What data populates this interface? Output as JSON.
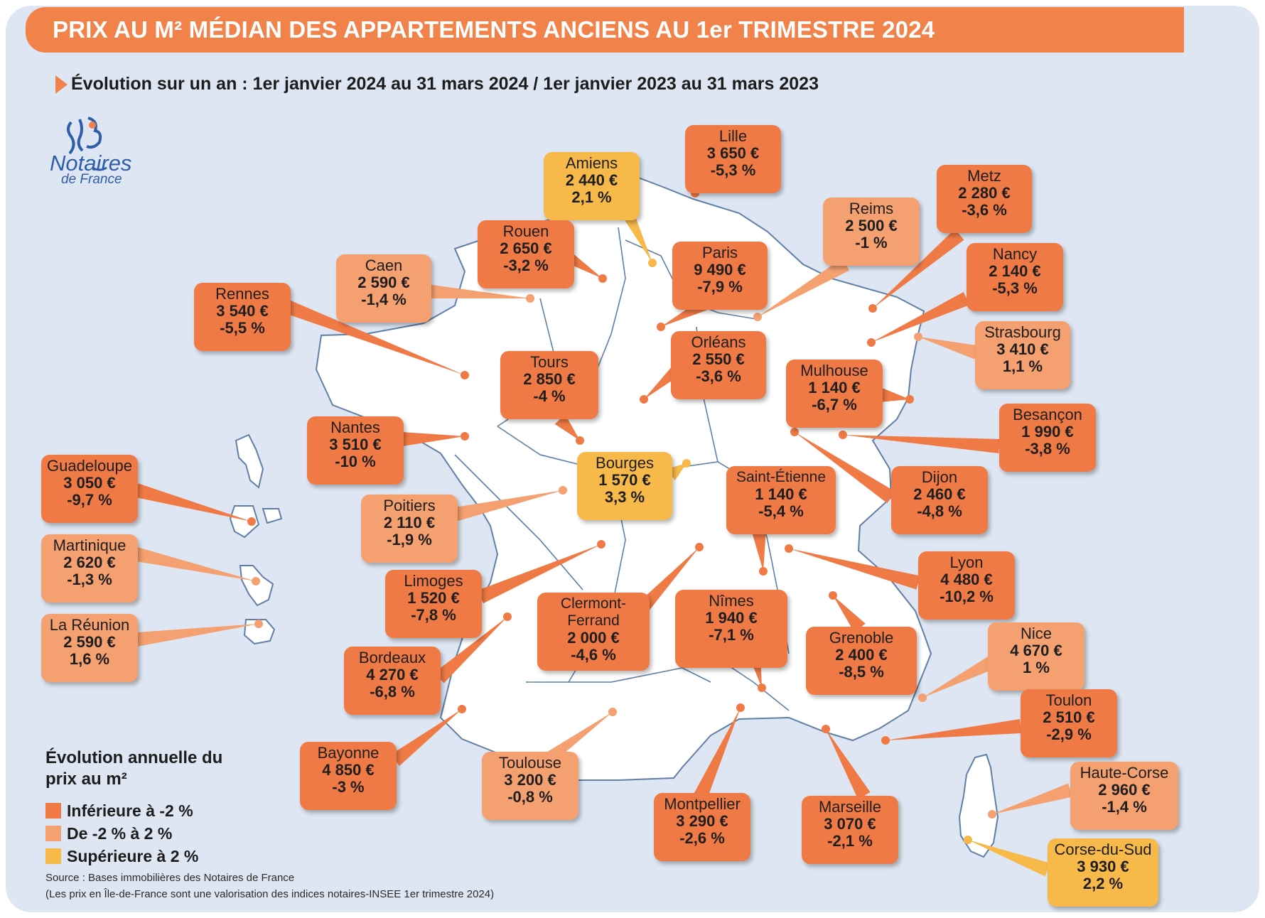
{
  "title": "PRIX AU M² MÉDIAN DES APPARTEMENTS ANCIENS AU 1er TRIMESTRE 2024",
  "subtitle": "Évolution sur un an : 1er janvier 2024 au 31 mars 2024 / 1er janvier 2023 au 31 mars 2023",
  "logo": {
    "name": "Notaires",
    "sub": "de France"
  },
  "colors": {
    "below": "#f07a45",
    "middle": "#f4a070",
    "above": "#f6b94a",
    "map_land": "#ffffff",
    "map_border": "#5f7fa6",
    "background": "#dde6f2"
  },
  "legend": {
    "title": "Évolution annuelle du prix au m²",
    "items": [
      {
        "label": "Inférieure à -2 %",
        "category": "below"
      },
      {
        "label": "De -2 % à 2 %",
        "category": "middle"
      },
      {
        "label": "Supérieure à 2 %",
        "category": "above"
      }
    ]
  },
  "source": [
    "Source : Bases immobilières des Notaires de France",
    "(Les prix en Île-de-France sont une valorisation des indices notaires-INSEE 1er trimestre 2024)"
  ],
  "cities": [
    {
      "name": "Lille",
      "price": "3 650 €",
      "change": "-5,3 %",
      "category": "below"
    },
    {
      "name": "Amiens",
      "price": "2 440 €",
      "change": "2,1 %",
      "category": "above"
    },
    {
      "name": "Metz",
      "price": "2 280 €",
      "change": "-3,6 %",
      "category": "below"
    },
    {
      "name": "Reims",
      "price": "2 500 €",
      "change": "-1 %",
      "category": "middle"
    },
    {
      "name": "Rouen",
      "price": "2 650 €",
      "change": "-3,2 %",
      "category": "below"
    },
    {
      "name": "Paris",
      "price": "9 490 €",
      "change": "-7,9 %",
      "category": "below"
    },
    {
      "name": "Nancy",
      "price": "2 140 €",
      "change": "-5,3 %",
      "category": "below"
    },
    {
      "name": "Caen",
      "price": "2 590 €",
      "change": "-1,4 %",
      "category": "middle"
    },
    {
      "name": "Rennes",
      "price": "3 540 €",
      "change": "-5,5 %",
      "category": "below"
    },
    {
      "name": "Strasbourg",
      "price": "3 410 €",
      "change": "1,1 %",
      "category": "middle"
    },
    {
      "name": "Orléans",
      "price": "2 550 €",
      "change": "-3,6 %",
      "category": "below"
    },
    {
      "name": "Tours",
      "price": "2 850 €",
      "change": "-4 %",
      "category": "below"
    },
    {
      "name": "Mulhouse",
      "price": "1 140 €",
      "change": "-6,7 %",
      "category": "below"
    },
    {
      "name": "Besançon",
      "price": "1 990 €",
      "change": "-3,8 %",
      "category": "below"
    },
    {
      "name": "Nantes",
      "price": "3 510 €",
      "change": "-10 %",
      "category": "below"
    },
    {
      "name": "Bourges",
      "price": "1 570 €",
      "change": "3,3 %",
      "category": "above"
    },
    {
      "name": "Guadeloupe",
      "price": "3 050 €",
      "change": "-9,7 %",
      "category": "below"
    },
    {
      "name": "Saint-Étienne",
      "price": "1 140 €",
      "change": "-5,4 %",
      "category": "below"
    },
    {
      "name": "Dijon",
      "price": "2 460 €",
      "change": "-4,8 %",
      "category": "below"
    },
    {
      "name": "Poitiers",
      "price": "2 110 €",
      "change": "-1,9 %",
      "category": "middle"
    },
    {
      "name": "Martinique",
      "price": "2 620 €",
      "change": "-1,3 %",
      "category": "middle"
    },
    {
      "name": "Lyon",
      "price": "4 480 €",
      "change": "-10,2 %",
      "category": "below"
    },
    {
      "name": "Limoges",
      "price": "1 520 €",
      "change": "-7,8 %",
      "category": "below"
    },
    {
      "name": "Clermont-Ferrand",
      "price": "2 000 €",
      "change": "-4,6 %",
      "category": "below"
    },
    {
      "name": "Nîmes",
      "price": "1 940 €",
      "change": "-7,1 %",
      "category": "below"
    },
    {
      "name": "La Réunion",
      "price": "2 590 €",
      "change": "1,6 %",
      "category": "middle"
    },
    {
      "name": "Nice",
      "price": "4 670 €",
      "change": "1 %",
      "category": "middle"
    },
    {
      "name": "Grenoble",
      "price": "2 400 €",
      "change": "-8,5 %",
      "category": "below"
    },
    {
      "name": "Bordeaux",
      "price": "4 270 €",
      "change": "-6,8 %",
      "category": "below"
    },
    {
      "name": "Toulon",
      "price": "2 510 €",
      "change": "-2,9 %",
      "category": "below"
    },
    {
      "name": "Bayonne",
      "price": "4 850 €",
      "change": "-3 %",
      "category": "below"
    },
    {
      "name": "Toulouse",
      "price": "3 200 €",
      "change": "-0,8 %",
      "category": "middle"
    },
    {
      "name": "Haute-Corse",
      "price": "2 960 €",
      "change": "-1,4 %",
      "category": "middle"
    },
    {
      "name": "Montpellier",
      "price": "3 290 €",
      "change": "-2,6 %",
      "category": "below"
    },
    {
      "name": "Marseille",
      "price": "3 070 €",
      "change": "-2,1 %",
      "category": "below"
    },
    {
      "name": "Corse-du-Sud",
      "price": "3 930 €",
      "change": "2,2 %",
      "category": "above"
    }
  ]
}
